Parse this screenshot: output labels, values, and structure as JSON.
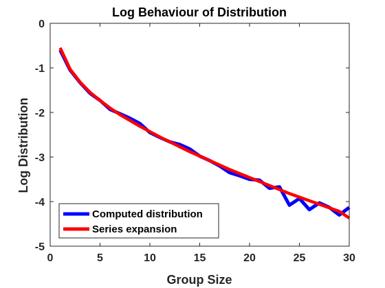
{
  "chart_data": {
    "type": "line",
    "title": "Log Behaviour of Distribution",
    "xlabel": "Group Size",
    "ylabel": "Log Distribution",
    "xlim": [
      0,
      30
    ],
    "ylim": [
      -5,
      0
    ],
    "xticks": [
      0,
      5,
      10,
      15,
      20,
      25,
      30
    ],
    "yticks": [
      0,
      -1,
      -2,
      -3,
      -4,
      -5
    ],
    "xtick_labels": [
      "0",
      "5",
      "10",
      "15",
      "20",
      "25",
      "30"
    ],
    "ytick_labels": [
      "0",
      "-1",
      "-2",
      "-3",
      "-4",
      "-5"
    ],
    "grid": false,
    "legend_position": "bottom-left",
    "series": [
      {
        "name": "Computed distribution",
        "color": "#0000ff",
        "x": [
          1,
          2,
          3,
          4,
          5,
          6,
          7,
          8,
          9,
          10,
          11,
          12,
          13,
          14,
          15,
          16,
          17,
          18,
          19,
          20,
          21,
          22,
          23,
          24,
          25,
          26,
          27,
          28,
          29,
          30
        ],
        "y": [
          -0.6,
          -1.05,
          -1.33,
          -1.57,
          -1.73,
          -1.93,
          -2.03,
          -2.13,
          -2.25,
          -2.45,
          -2.56,
          -2.66,
          -2.72,
          -2.82,
          -2.98,
          -3.08,
          -3.2,
          -3.35,
          -3.42,
          -3.5,
          -3.52,
          -3.7,
          -3.67,
          -4.08,
          -3.93,
          -4.18,
          -4.03,
          -4.13,
          -4.3,
          -4.13
        ]
      },
      {
        "name": "Series expansion",
        "color": "#ff0000",
        "x": [
          1,
          2,
          3,
          4,
          5,
          6,
          7,
          8,
          9,
          10,
          11,
          12,
          13,
          14,
          15,
          16,
          17,
          18,
          19,
          20,
          21,
          22,
          23,
          24,
          25,
          26,
          27,
          28,
          29,
          30
        ],
        "y": [
          -0.55,
          -1.03,
          -1.32,
          -1.55,
          -1.73,
          -1.9,
          -2.05,
          -2.18,
          -2.31,
          -2.43,
          -2.55,
          -2.66,
          -2.77,
          -2.88,
          -2.98,
          -3.08,
          -3.18,
          -3.28,
          -3.37,
          -3.46,
          -3.55,
          -3.64,
          -3.73,
          -3.82,
          -3.9,
          -3.98,
          -4.06,
          -4.14,
          -4.22,
          -4.37
        ]
      }
    ]
  }
}
